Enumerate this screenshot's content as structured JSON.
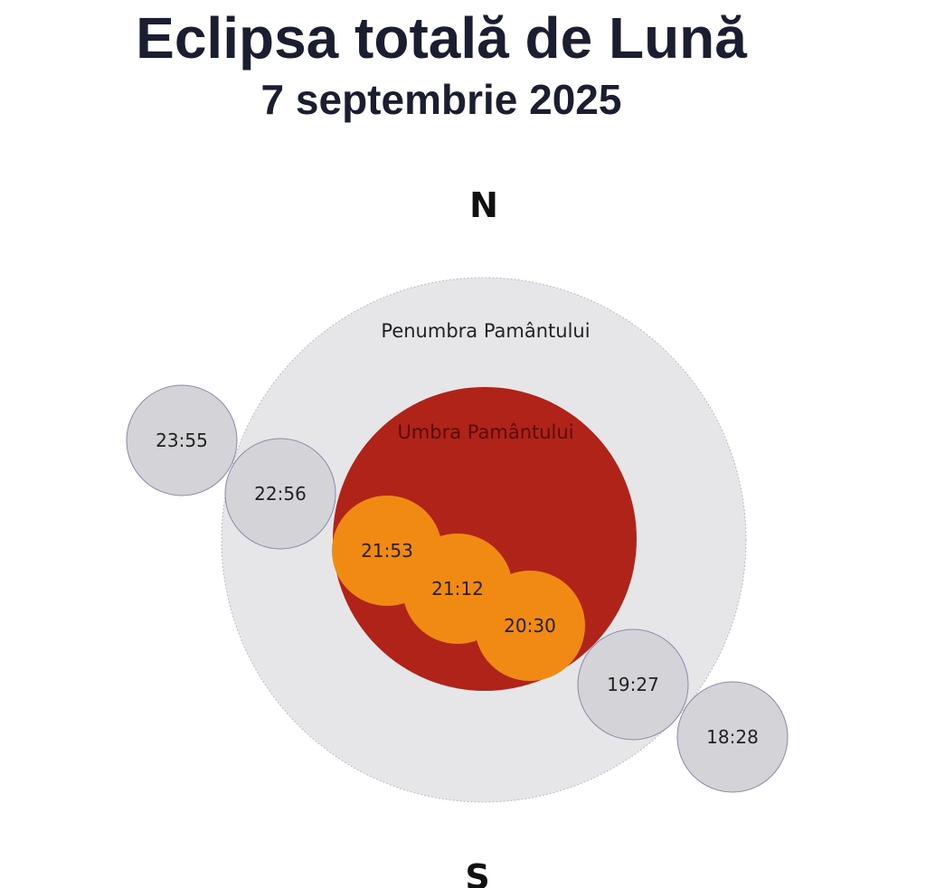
{
  "title": "Eclipsa totală de Lună",
  "subtitle": "7 septembrie 2025",
  "compass": {
    "north": "N",
    "south": "S"
  },
  "zones": {
    "penumbra": {
      "label": "Penumbra Pamântului",
      "color": "#e6e6e9"
    },
    "umbra": {
      "label": "Umbra Pamântului",
      "color": "#b02318",
      "label_color": "#5a0c08"
    }
  },
  "moon_colors": {
    "in_penumbra": "#d3d3d8",
    "in_umbra": "#f18a12",
    "outline": "#8a8aa8"
  },
  "moon_positions": [
    {
      "time": "18:28",
      "phase": "in_penumbra"
    },
    {
      "time": "19:27",
      "phase": "in_penumbra"
    },
    {
      "time": "20:30",
      "phase": "in_umbra"
    },
    {
      "time": "21:12",
      "phase": "in_umbra"
    },
    {
      "time": "21:53",
      "phase": "in_umbra"
    },
    {
      "time": "22:56",
      "phase": "in_penumbra"
    },
    {
      "time": "23:55",
      "phase": "in_penumbra"
    }
  ]
}
